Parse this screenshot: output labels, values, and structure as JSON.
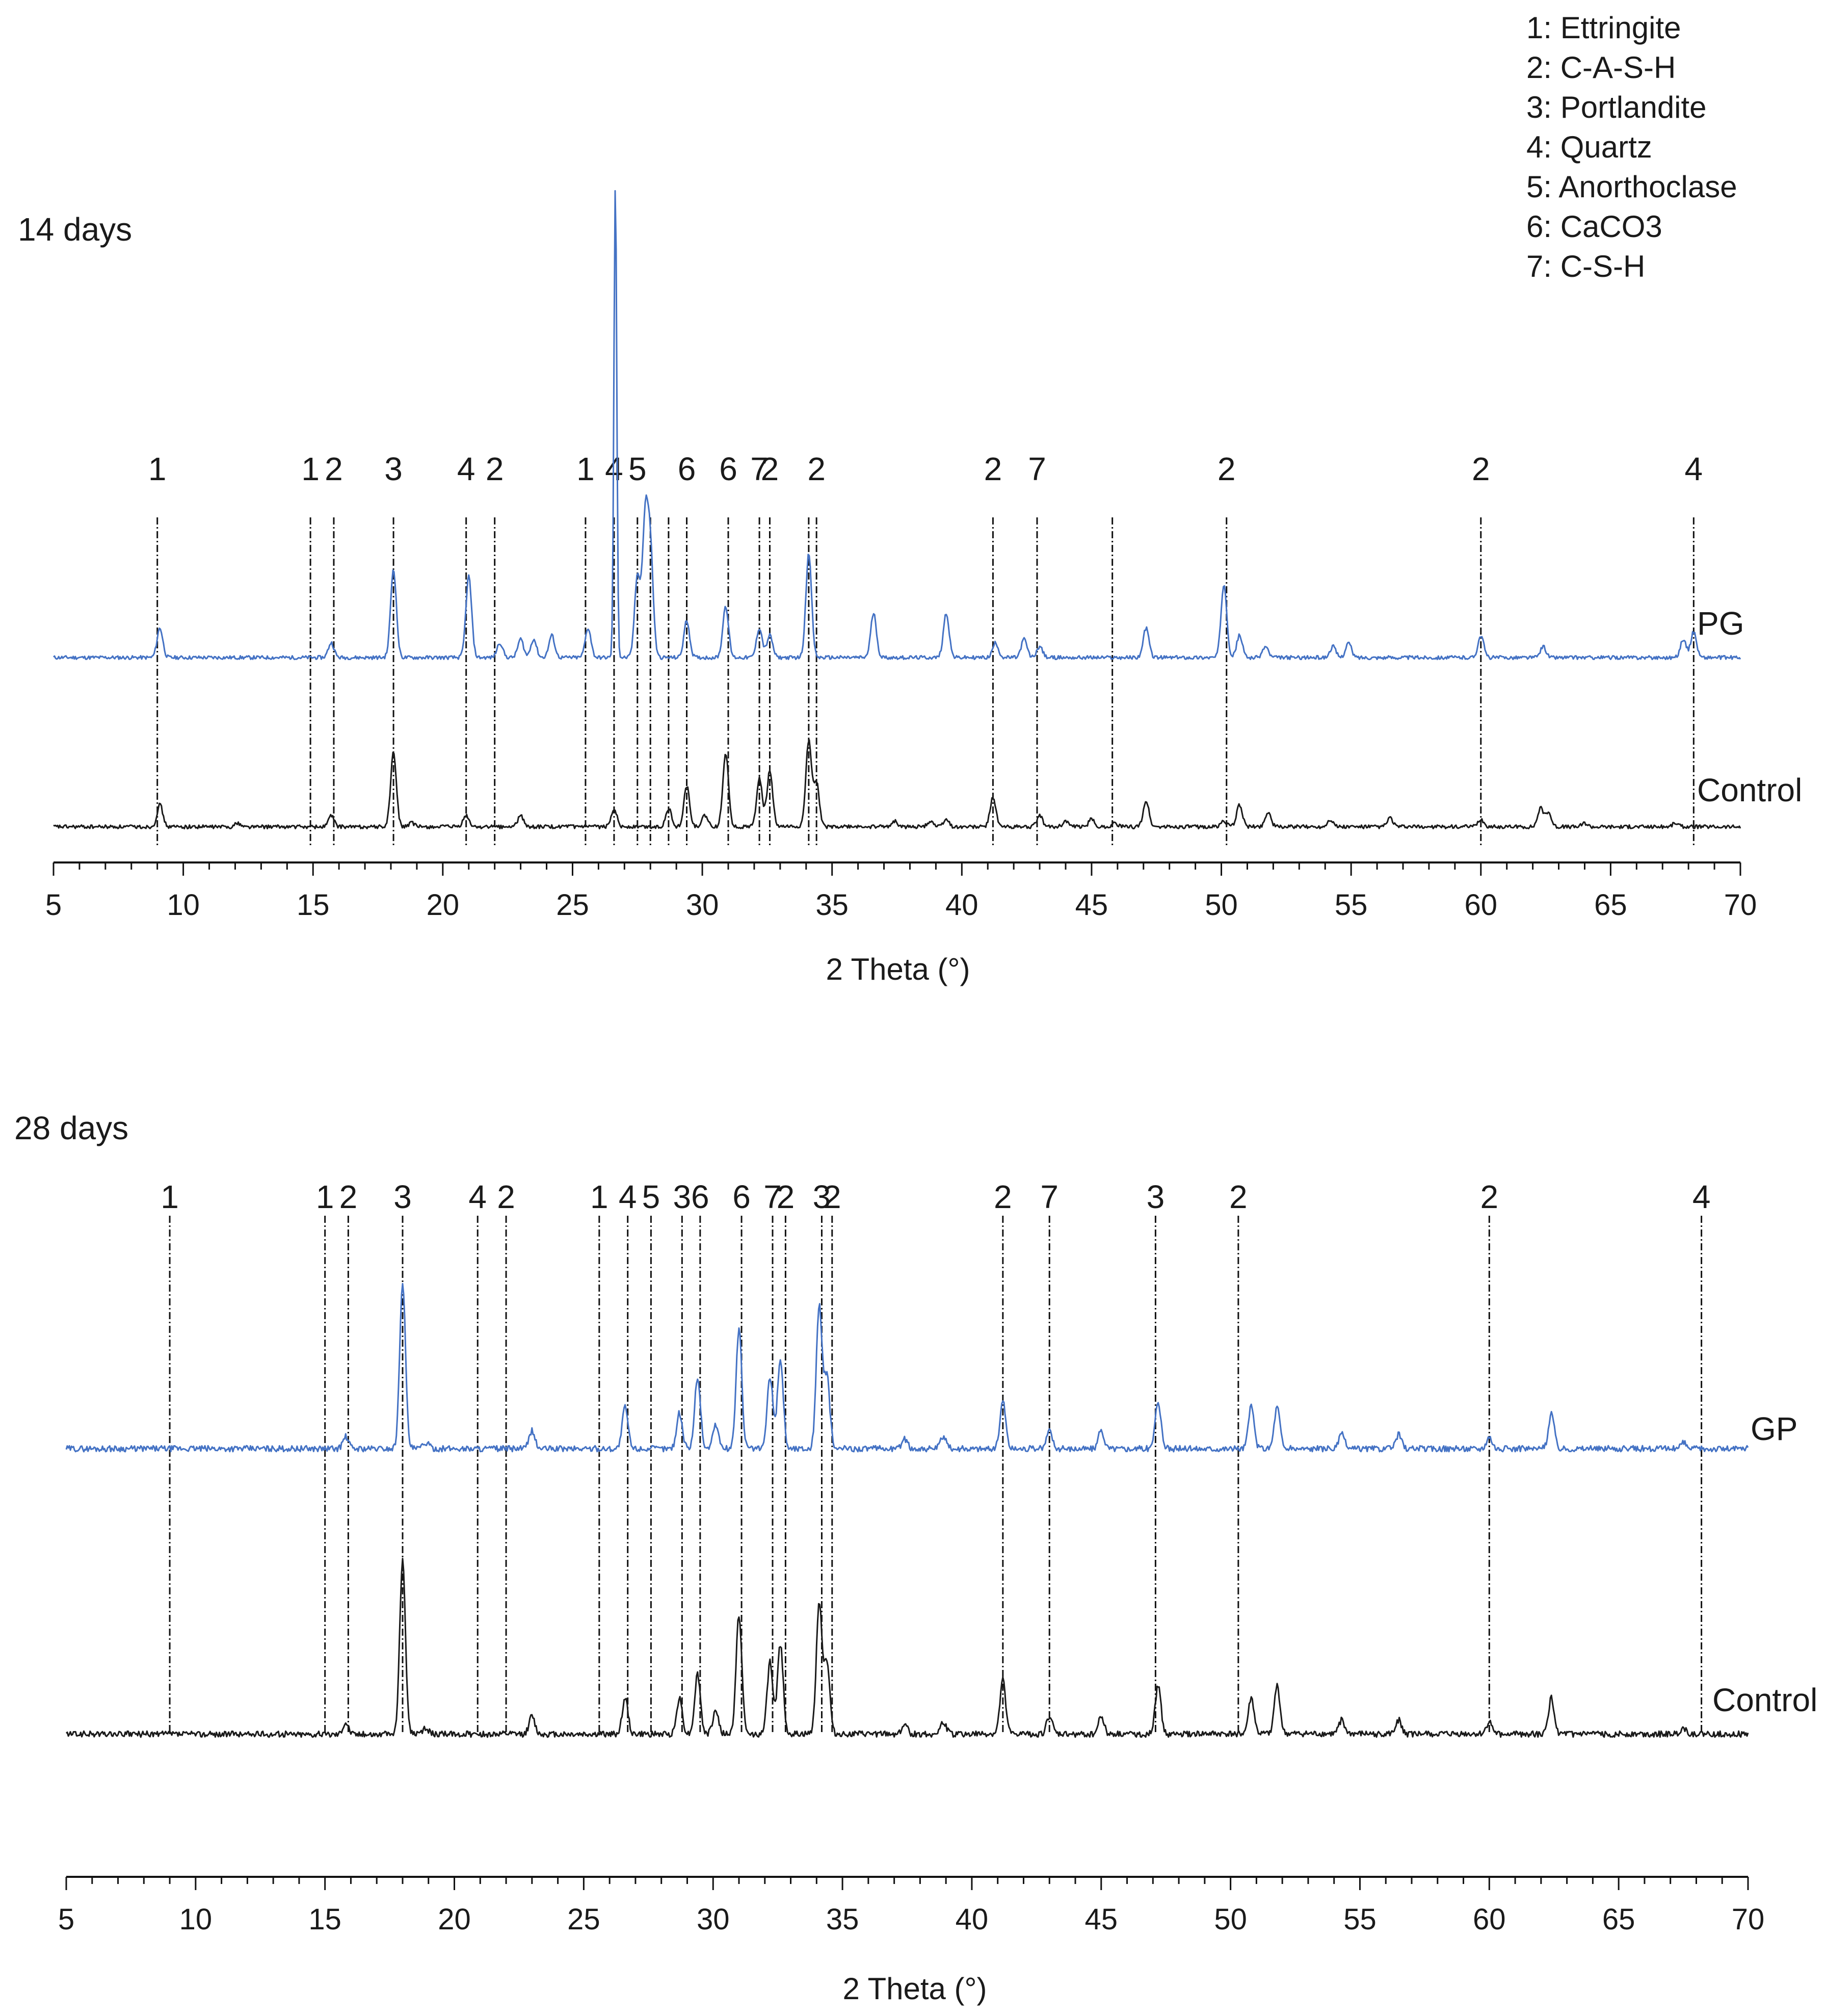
{
  "legend": {
    "entries": [
      "1: Ettringite",
      "2: C-A-S-H",
      "3: Portlandite",
      "4: Quartz",
      "5: Anorthoclase",
      "6: CaCO3",
      "7: C-S-H"
    ]
  },
  "colors": {
    "blue_series": "#4472C4",
    "black_series": "#1a1a1a",
    "guide": "#111111"
  },
  "chart_data": [
    {
      "type": "line",
      "title": "14 days",
      "xlabel": "2 Theta (°)",
      "ylabel": "",
      "xlim": [
        5,
        70
      ],
      "xticks": [
        5,
        10,
        15,
        20,
        25,
        30,
        35,
        40,
        45,
        50,
        55,
        60,
        65,
        70
      ],
      "series": [
        {
          "name": "PG",
          "color": "#4472C4",
          "peaks": [
            [
              9.1,
              0.4
            ],
            [
              15.7,
              0.2
            ],
            [
              18.1,
              1.2
            ],
            [
              21.0,
              1.1
            ],
            [
              22.2,
              0.2
            ],
            [
              23.0,
              0.25
            ],
            [
              23.5,
              0.25
            ],
            [
              24.2,
              0.3
            ],
            [
              25.6,
              0.4
            ],
            [
              26.65,
              6.4
            ],
            [
              27.5,
              1.1
            ],
            [
              27.8,
              1.8
            ],
            [
              28.0,
              1.4
            ],
            [
              29.4,
              0.5
            ],
            [
              30.9,
              0.7
            ],
            [
              32.2,
              0.4
            ],
            [
              32.6,
              0.3
            ],
            [
              34.1,
              1.4
            ],
            [
              36.6,
              0.6
            ],
            [
              39.4,
              0.6
            ],
            [
              41.3,
              0.2
            ],
            [
              42.4,
              0.25
            ],
            [
              43.0,
              0.15
            ],
            [
              47.1,
              0.4
            ],
            [
              50.1,
              1.0
            ],
            [
              50.7,
              0.3
            ],
            [
              51.7,
              0.15
            ],
            [
              54.3,
              0.15
            ],
            [
              54.9,
              0.2
            ],
            [
              60.0,
              0.3
            ],
            [
              62.4,
              0.15
            ],
            [
              67.8,
              0.25
            ],
            [
              68.2,
              0.35
            ]
          ],
          "offset": 1.0
        },
        {
          "name": "Control",
          "color": "#1a1a1a",
          "peaks": [
            [
              9.1,
              0.3
            ],
            [
              12.1,
              0.05
            ],
            [
              15.7,
              0.15
            ],
            [
              18.1,
              1.0
            ],
            [
              18.8,
              0.05
            ],
            [
              20.9,
              0.15
            ],
            [
              23.0,
              0.15
            ],
            [
              26.6,
              0.25
            ],
            [
              28.7,
              0.25
            ],
            [
              29.4,
              0.55
            ],
            [
              30.1,
              0.15
            ],
            [
              30.9,
              1.0
            ],
            [
              32.2,
              0.65
            ],
            [
              32.6,
              0.75
            ],
            [
              34.1,
              1.15
            ],
            [
              34.4,
              0.6
            ],
            [
              37.4,
              0.08
            ],
            [
              38.8,
              0.08
            ],
            [
              39.4,
              0.1
            ],
            [
              41.2,
              0.4
            ],
            [
              43.0,
              0.15
            ],
            [
              44.0,
              0.08
            ],
            [
              45.0,
              0.1
            ],
            [
              45.9,
              0.05
            ],
            [
              47.1,
              0.35
            ],
            [
              50.1,
              0.08
            ],
            [
              50.7,
              0.3
            ],
            [
              51.8,
              0.2
            ],
            [
              54.2,
              0.1
            ],
            [
              56.5,
              0.12
            ],
            [
              60.0,
              0.1
            ],
            [
              62.3,
              0.25
            ],
            [
              62.6,
              0.2
            ],
            [
              64.0,
              0.05
            ],
            [
              67.5,
              0.05
            ]
          ],
          "offset": 0.0
        }
      ],
      "series_labels": [
        "PG",
        "Control"
      ],
      "phase_markers": [
        {
          "x": 9.0,
          "label": "1"
        },
        {
          "x": 14.9,
          "label": "1"
        },
        {
          "x": 15.8,
          "label": "2"
        },
        {
          "x": 18.1,
          "label": "3"
        },
        {
          "x": 20.9,
          "label": "4"
        },
        {
          "x": 22.0,
          "label": "2"
        },
        {
          "x": 25.5,
          "label": "1"
        },
        {
          "x": 26.6,
          "label": "4"
        },
        {
          "x": 27.5,
          "label": "5"
        },
        {
          "x": 28.0,
          "label": ""
        },
        {
          "x": 28.7,
          "label": ""
        },
        {
          "x": 29.4,
          "label": "6"
        },
        {
          "x": 31.0,
          "label": "6"
        },
        {
          "x": 32.2,
          "label": "7"
        },
        {
          "x": 32.6,
          "label": "2"
        },
        {
          "x": 34.1,
          "label": ""
        },
        {
          "x": 34.4,
          "label": "2"
        },
        {
          "x": 41.2,
          "label": "2"
        },
        {
          "x": 42.9,
          "label": "7"
        },
        {
          "x": 45.8,
          "label": ""
        },
        {
          "x": 50.2,
          "label": "2"
        },
        {
          "x": 60.0,
          "label": "2"
        },
        {
          "x": 68.2,
          "label": "4"
        }
      ]
    },
    {
      "type": "line",
      "title": "28 days",
      "xlabel": "2 Theta (°)",
      "ylabel": "",
      "xlim": [
        5,
        70
      ],
      "xticks": [
        5,
        10,
        15,
        20,
        25,
        30,
        35,
        40,
        45,
        50,
        55,
        60,
        65,
        70
      ],
      "series": [
        {
          "name": "GP",
          "color": "#4472C4",
          "peaks": [
            [
              15.8,
              0.1
            ],
            [
              18.0,
              1.4
            ],
            [
              18.9,
              0.05
            ],
            [
              23.0,
              0.15
            ],
            [
              26.6,
              0.35
            ],
            [
              28.7,
              0.3
            ],
            [
              29.4,
              0.6
            ],
            [
              30.1,
              0.2
            ],
            [
              31.0,
              1.0
            ],
            [
              32.2,
              0.6
            ],
            [
              32.6,
              0.75
            ],
            [
              34.1,
              1.2
            ],
            [
              34.4,
              0.6
            ],
            [
              37.4,
              0.08
            ],
            [
              38.9,
              0.1
            ],
            [
              41.2,
              0.4
            ],
            [
              43.0,
              0.15
            ],
            [
              45.0,
              0.15
            ],
            [
              47.2,
              0.4
            ],
            [
              50.8,
              0.35
            ],
            [
              51.8,
              0.35
            ],
            [
              54.3,
              0.12
            ],
            [
              56.5,
              0.12
            ],
            [
              60.0,
              0.1
            ],
            [
              62.4,
              0.3
            ],
            [
              67.5,
              0.05
            ]
          ],
          "offset": 1.0
        },
        {
          "name": "Control",
          "color": "#1a1a1a",
          "peaks": [
            [
              15.8,
              0.1
            ],
            [
              18.0,
              1.45
            ],
            [
              18.9,
              0.05
            ],
            [
              23.0,
              0.15
            ],
            [
              26.6,
              0.3
            ],
            [
              28.7,
              0.3
            ],
            [
              29.4,
              0.5
            ],
            [
              30.1,
              0.2
            ],
            [
              31.0,
              1.0
            ],
            [
              32.2,
              0.6
            ],
            [
              32.6,
              0.75
            ],
            [
              34.1,
              1.1
            ],
            [
              34.4,
              0.6
            ],
            [
              37.4,
              0.08
            ],
            [
              38.9,
              0.1
            ],
            [
              41.2,
              0.45
            ],
            [
              43.0,
              0.15
            ],
            [
              45.0,
              0.15
            ],
            [
              47.2,
              0.4
            ],
            [
              50.8,
              0.3
            ],
            [
              51.8,
              0.4
            ],
            [
              54.3,
              0.12
            ],
            [
              56.5,
              0.12
            ],
            [
              60.0,
              0.1
            ],
            [
              62.4,
              0.3
            ],
            [
              67.5,
              0.05
            ]
          ],
          "offset": 0.0
        }
      ],
      "series_labels": [
        "GP",
        "Control"
      ],
      "phase_markers": [
        {
          "x": 9.0,
          "label": "1"
        },
        {
          "x": 15.0,
          "label": "1"
        },
        {
          "x": 15.9,
          "label": "2"
        },
        {
          "x": 18.0,
          "label": "3"
        },
        {
          "x": 20.9,
          "label": "4"
        },
        {
          "x": 22.0,
          "label": "2"
        },
        {
          "x": 25.6,
          "label": "1"
        },
        {
          "x": 26.7,
          "label": "4"
        },
        {
          "x": 27.6,
          "label": "5"
        },
        {
          "x": 28.8,
          "label": "3"
        },
        {
          "x": 29.5,
          "label": "6"
        },
        {
          "x": 31.1,
          "label": "6"
        },
        {
          "x": 32.3,
          "label": "7"
        },
        {
          "x": 32.8,
          "label": "2"
        },
        {
          "x": 34.2,
          "label": "3"
        },
        {
          "x": 34.6,
          "label": "2"
        },
        {
          "x": 41.2,
          "label": "2"
        },
        {
          "x": 43.0,
          "label": "7"
        },
        {
          "x": 47.1,
          "label": "3"
        },
        {
          "x": 50.3,
          "label": "2"
        },
        {
          "x": 60.0,
          "label": "2"
        },
        {
          "x": 68.2,
          "label": "4"
        }
      ]
    }
  ]
}
